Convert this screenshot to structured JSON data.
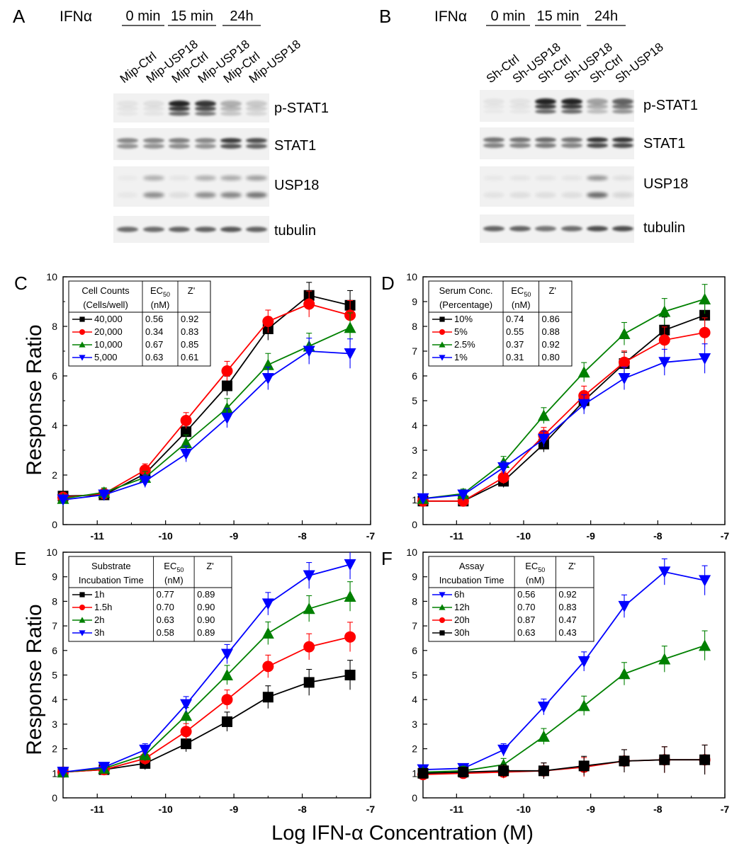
{
  "blots": [
    {
      "letter": "A",
      "treatment_label": "IFNα",
      "time_groups": [
        "0 min",
        "15 min",
        "24h"
      ],
      "lanes": [
        "Mip-Ctrl",
        "Mip-USP18",
        "Mip-Ctrl",
        "Mip-USP18",
        "Mip-Ctrl",
        "Mip-USP18"
      ],
      "bands": [
        "p-STAT1",
        "STAT1",
        "USP18",
        "tubulin"
      ]
    },
    {
      "letter": "B",
      "treatment_label": "IFNα",
      "time_groups": [
        "0 min",
        "15 min",
        "24h"
      ],
      "lanes": [
        "Sh-Ctrl",
        "Sh-USP18",
        "Sh-Ctrl",
        "Sh-USP18",
        "Sh-Ctrl",
        "Sh-USP18"
      ],
      "bands": [
        "p-STAT1",
        "STAT1",
        "USP18",
        "tubulin"
      ]
    }
  ],
  "shared_axes": {
    "ylabel": "Response Ratio",
    "xlabel": "Log IFN-α Concentration (M)"
  },
  "chart_data": [
    {
      "letter": "C",
      "type": "line",
      "xlim": [
        -11.5,
        -7
      ],
      "ylim": [
        0,
        10
      ],
      "xticks": [
        "-11",
        "-10",
        "-9",
        "-8",
        "-7"
      ],
      "yticks": [
        "0",
        "2",
        "4",
        "6",
        "8",
        "10"
      ],
      "legend_title": [
        "Cell Counts",
        "(Cells/well)"
      ],
      "legend_headers": [
        "EC50",
        "(nM)",
        "Z'"
      ],
      "x": [
        -11.5,
        -10.9,
        -10.3,
        -9.7,
        -9.1,
        -8.5,
        -7.9,
        -7.3
      ],
      "series": [
        {
          "name": "40,000",
          "color": "#000000",
          "marker": "square",
          "ec50": "0.56",
          "z": "0.92",
          "values": [
            1.15,
            1.2,
            2.05,
            3.75,
            5.6,
            7.9,
            9.25,
            8.85
          ]
        },
        {
          "name": "20,000",
          "color": "#ff0000",
          "marker": "circle",
          "ec50": "0.34",
          "z": "0.83",
          "values": [
            1.1,
            1.25,
            2.2,
            4.2,
            6.2,
            8.2,
            8.9,
            8.45
          ]
        },
        {
          "name": "10,000",
          "color": "#008000",
          "marker": "triangle-up",
          "ec50": "0.67",
          "z": "0.85",
          "values": [
            1.05,
            1.3,
            1.9,
            3.3,
            4.7,
            6.45,
            7.2,
            7.95
          ]
        },
        {
          "name": "5,000",
          "color": "#0000ff",
          "marker": "triangle-down",
          "ec50": "0.63",
          "z": "0.61",
          "values": [
            1.0,
            1.2,
            1.75,
            2.85,
            4.3,
            5.9,
            7.0,
            6.9
          ]
        }
      ]
    },
    {
      "letter": "D",
      "type": "line",
      "xlim": [
        -11.5,
        -7
      ],
      "ylim": [
        0,
        10
      ],
      "xticks": [
        "-11",
        "-10",
        "-9",
        "-8",
        "-7"
      ],
      "yticks": [
        "0",
        "1",
        "2",
        "3",
        "4",
        "5",
        "6",
        "7",
        "8",
        "9",
        "10"
      ],
      "legend_title": [
        "Serum Conc.",
        "(Percentage)"
      ],
      "legend_headers": [
        "EC50",
        "(nM)",
        "Z'"
      ],
      "x": [
        -11.5,
        -10.9,
        -10.3,
        -9.7,
        -9.1,
        -8.5,
        -7.9,
        -7.3
      ],
      "series": [
        {
          "name": "10%",
          "color": "#000000",
          "marker": "square",
          "ec50": "0.74",
          "z": "0.86",
          "values": [
            0.95,
            0.95,
            1.75,
            3.25,
            5.0,
            6.5,
            7.85,
            8.45
          ]
        },
        {
          "name": "5%",
          "color": "#ff0000",
          "marker": "circle",
          "ec50": "0.55",
          "z": "0.88",
          "values": [
            0.95,
            0.95,
            1.9,
            3.6,
            5.2,
            6.55,
            7.45,
            7.75
          ]
        },
        {
          "name": "2.5%",
          "color": "#008000",
          "marker": "triangle-up",
          "ec50": "0.37",
          "z": "0.92",
          "values": [
            1.05,
            1.25,
            2.5,
            4.4,
            6.15,
            7.7,
            8.6,
            9.1
          ]
        },
        {
          "name": "1%",
          "color": "#0000ff",
          "marker": "triangle-down",
          "ec50": "0.31",
          "z": "0.80",
          "values": [
            1.05,
            1.2,
            2.3,
            3.45,
            4.85,
            5.9,
            6.55,
            6.7
          ]
        }
      ]
    },
    {
      "letter": "E",
      "type": "line",
      "xlim": [
        -11.5,
        -7
      ],
      "ylim": [
        0,
        10
      ],
      "xticks": [
        "-11",
        "-10",
        "-9",
        "-8",
        "-7"
      ],
      "yticks": [
        "0",
        "1",
        "2",
        "3",
        "4",
        "5",
        "6",
        "7",
        "8",
        "9",
        "10"
      ],
      "legend_title": [
        "Substrate",
        "Incubation Time"
      ],
      "legend_headers": [
        "EC50",
        "(nM)",
        "Z'"
      ],
      "x": [
        -11.5,
        -10.9,
        -10.3,
        -9.7,
        -9.1,
        -8.5,
        -7.9,
        -7.3
      ],
      "series": [
        {
          "name": "1h",
          "color": "#000000",
          "marker": "square",
          "ec50": "0.77",
          "z": "0.89",
          "values": [
            1.05,
            1.15,
            1.4,
            2.2,
            3.1,
            4.1,
            4.7,
            5.0
          ]
        },
        {
          "name": "1.5h",
          "color": "#ff0000",
          "marker": "circle",
          "ec50": "0.70",
          "z": "0.90",
          "values": [
            1.05,
            1.15,
            1.6,
            2.7,
            4.0,
            5.35,
            6.15,
            6.55
          ]
        },
        {
          "name": "2h",
          "color": "#008000",
          "marker": "triangle-up",
          "ec50": "0.63",
          "z": "0.90",
          "values": [
            1.05,
            1.2,
            1.75,
            3.35,
            5.0,
            6.7,
            7.7,
            8.2
          ]
        },
        {
          "name": "3h",
          "color": "#0000ff",
          "marker": "triangle-down",
          "ec50": "0.58",
          "z": "0.89",
          "values": [
            1.05,
            1.25,
            1.95,
            3.8,
            5.85,
            7.9,
            9.05,
            9.5
          ]
        }
      ]
    },
    {
      "letter": "F",
      "type": "line",
      "xlim": [
        -11.5,
        -7
      ],
      "ylim": [
        0,
        10
      ],
      "xticks": [
        "-11",
        "-10",
        "-9",
        "-8",
        "-7"
      ],
      "yticks": [
        "0",
        "1",
        "2",
        "3",
        "4",
        "5",
        "6",
        "7",
        "8",
        "9",
        "10"
      ],
      "legend_title": [
        "Assay",
        "Incubation Time"
      ],
      "legend_headers": [
        "EC50",
        "(nM)",
        "Z'"
      ],
      "x": [
        -11.5,
        -10.9,
        -10.3,
        -9.7,
        -9.1,
        -8.5,
        -7.9,
        -7.3
      ],
      "series": [
        {
          "name": "6h",
          "color": "#0000ff",
          "marker": "triangle-down",
          "ec50": "0.56",
          "z": "0.92",
          "values": [
            1.15,
            1.2,
            1.95,
            3.7,
            5.55,
            7.8,
            9.2,
            8.85
          ]
        },
        {
          "name": "12h",
          "color": "#008000",
          "marker": "triangle-up",
          "ec50": "0.70",
          "z": "0.83",
          "values": [
            1.05,
            1.1,
            1.35,
            2.5,
            3.75,
            5.05,
            5.65,
            6.2
          ]
        },
        {
          "name": "20h",
          "color": "#ff0000",
          "marker": "circle",
          "ec50": "0.87",
          "z": "0.47",
          "values": [
            0.95,
            1.0,
            1.05,
            1.1,
            1.25,
            1.5,
            1.55,
            1.55
          ]
        },
        {
          "name": "30h",
          "color": "#000000",
          "marker": "square",
          "ec50": "0.63",
          "z": "0.43",
          "values": [
            1.0,
            1.05,
            1.1,
            1.1,
            1.3,
            1.5,
            1.55,
            1.55
          ]
        }
      ]
    }
  ]
}
